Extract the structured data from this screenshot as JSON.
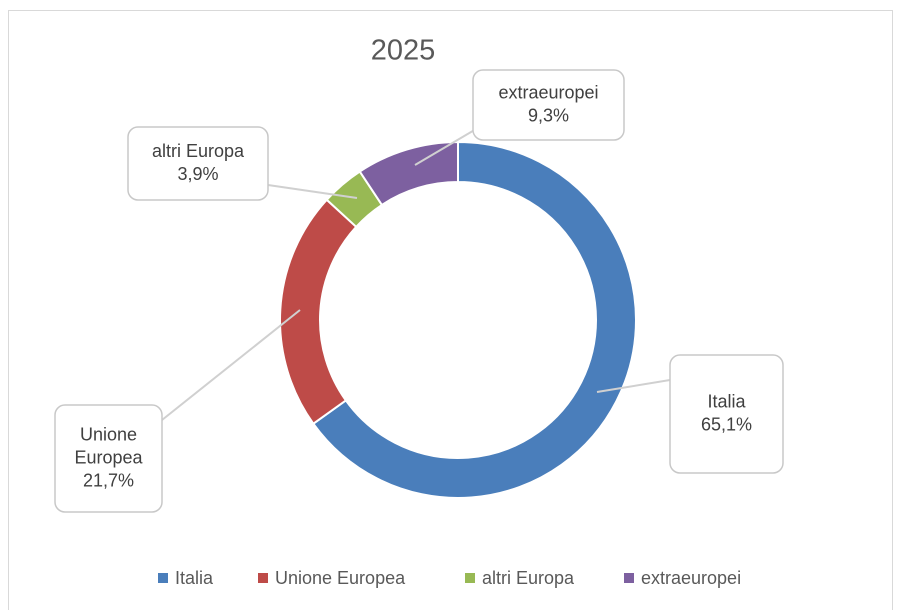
{
  "chart_data": {
    "type": "donut",
    "title": "2025",
    "categories": [
      "Italia",
      "Unione Europea",
      "altri Europa",
      "extraeuropei"
    ],
    "values": [
      65.1,
      21.7,
      3.9,
      9.3
    ],
    "value_labels": [
      "65,1%",
      "21,7%",
      "3,9%",
      "9,3%"
    ],
    "colors": [
      "#4a7ebb",
      "#be4b48",
      "#98b954",
      "#7d60a0"
    ],
    "legend": "bottom"
  }
}
